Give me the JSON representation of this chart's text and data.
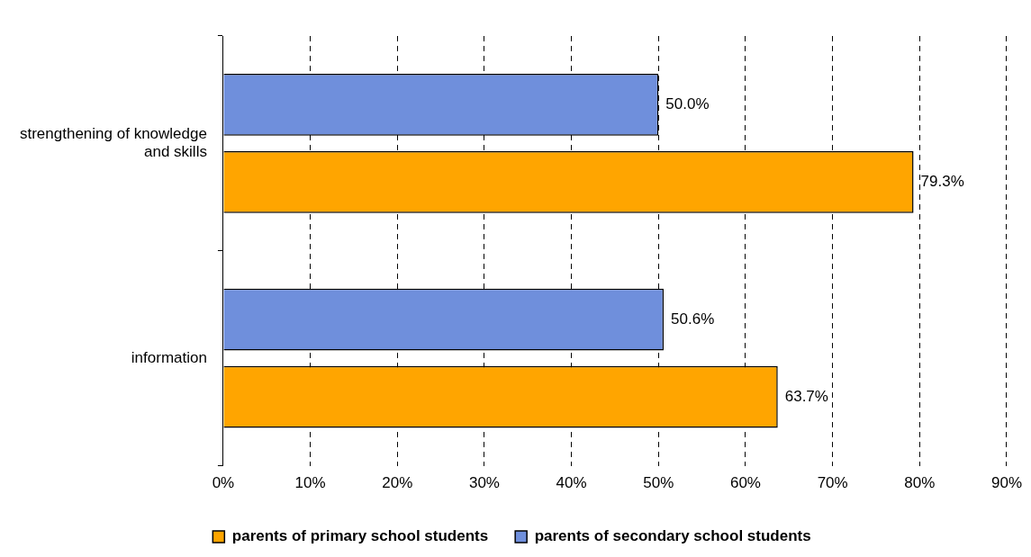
{
  "chart_data": {
    "type": "bar",
    "orientation": "horizontal",
    "categories": [
      "strengthening of knowledge and skills",
      "information"
    ],
    "series": [
      {
        "name": "parents of primary school students",
        "color": "#ffa500",
        "values": [
          79.3,
          63.7
        ],
        "value_labels": [
          "79.3%",
          "63.7%"
        ]
      },
      {
        "name": "parents of secondary school students",
        "color": "#6f8fdc",
        "values": [
          50.0,
          50.6
        ],
        "value_labels": [
          "50.0%",
          "50.6%"
        ]
      }
    ],
    "xlim": [
      0,
      90
    ],
    "xticks": [
      {
        "value": 0,
        "label": "0%"
      },
      {
        "value": 10,
        "label": "10%"
      },
      {
        "value": 20,
        "label": "20%"
      },
      {
        "value": 30,
        "label": "30%"
      },
      {
        "value": 40,
        "label": "40%"
      },
      {
        "value": 50,
        "label": "50%"
      },
      {
        "value": 60,
        "label": "60%"
      },
      {
        "value": 70,
        "label": "70%"
      },
      {
        "value": 80,
        "label": "80%"
      },
      {
        "value": 90,
        "label": "90%"
      }
    ],
    "grid": "x",
    "legend": "bottom"
  }
}
